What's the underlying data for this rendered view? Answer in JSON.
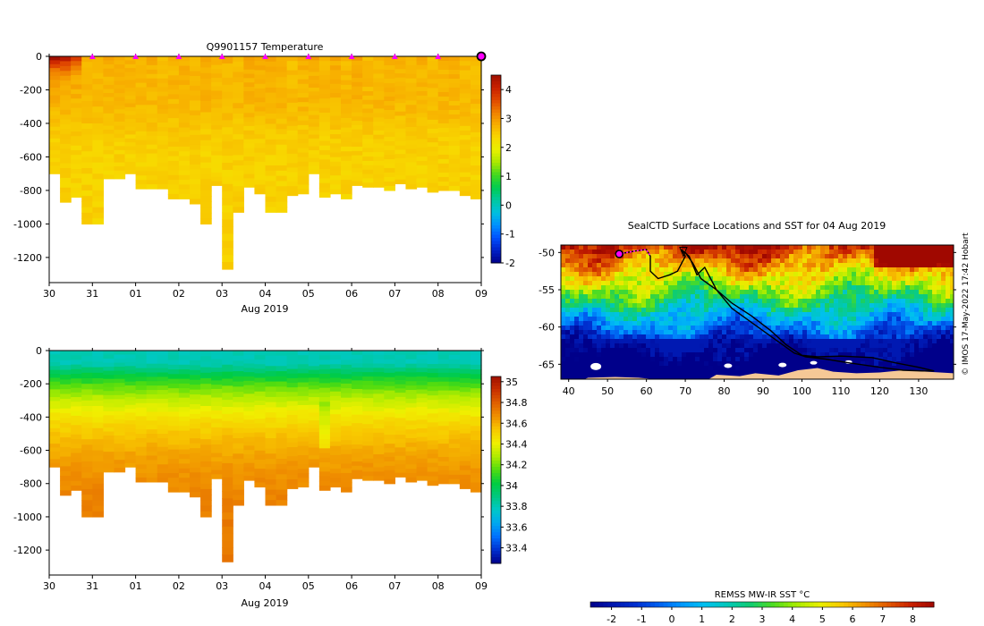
{
  "colors": {
    "temp_ramp": [
      "#00008a",
      "#0020c8",
      "#0050ff",
      "#0090ff",
      "#00c0e0",
      "#00c8a0",
      "#00cc50",
      "#40d820",
      "#a8e800",
      "#e8f000",
      "#f8d800",
      "#f8b000",
      "#f08000",
      "#e04800",
      "#c82000",
      "#a01000"
    ],
    "salt_ramp": [
      "#00008a",
      "#0030d0",
      "#0070ff",
      "#00a8f0",
      "#00c8c8",
      "#00c880",
      "#00cc40",
      "#50dc10",
      "#b0ec00",
      "#f0f000",
      "#f8c800",
      "#f09000",
      "#e06000",
      "#c83000",
      "#a01000"
    ],
    "sst_ramp": [
      "#00008a",
      "#0018b0",
      "#0030d0",
      "#0060f0",
      "#0098ff",
      "#00c0f0",
      "#00c8b8",
      "#10cc70",
      "#50dc20",
      "#a8ec00",
      "#e8f000",
      "#f8c800",
      "#f09000",
      "#e05800",
      "#c82000",
      "#a00800"
    ],
    "land": "#f5c896",
    "marker": "#ff00ff",
    "track": "#000000"
  },
  "chart_data": [
    {
      "id": "temperature",
      "type": "heatmap",
      "title": "Q9901157  Temperature",
      "xlabel": "Aug 2019",
      "x_ticks": [
        "30",
        "31",
        "01",
        "02",
        "03",
        "04",
        "05",
        "06",
        "07",
        "08",
        "09"
      ],
      "y_ticks": [
        "0",
        "-200",
        "-400",
        "-600",
        "-800",
        "-1000",
        "-1200"
      ],
      "ylim": [
        -1350,
        0
      ],
      "x_range_days": [
        0,
        10
      ],
      "colorbar": {
        "ticks": [
          "4",
          "3",
          "2",
          "1",
          "0",
          "-1",
          "-2"
        ],
        "range": [
          -2,
          4.5
        ]
      },
      "profile_times": [
        0.0,
        0.25,
        0.5,
        0.75,
        1.0,
        1.25,
        1.5,
        1.75,
        2.0,
        2.25,
        2.5,
        2.75,
        3.0,
        3.25,
        3.5,
        3.75,
        4.0,
        4.25,
        4.5,
        4.75,
        5.0,
        5.25,
        5.5,
        5.75,
        6.0,
        6.25,
        6.5,
        6.75,
        7.0,
        7.25,
        7.5,
        7.75,
        8.0,
        8.25,
        8.5,
        8.75,
        9.0,
        9.25,
        9.5,
        9.75
      ],
      "profile_max_depths": [
        700,
        870,
        840,
        1000,
        1000,
        730,
        730,
        700,
        790,
        790,
        790,
        850,
        850,
        880,
        1000,
        770,
        1270,
        930,
        780,
        820,
        930,
        930,
        830,
        820,
        700,
        840,
        820,
        850,
        770,
        780,
        780,
        800,
        760,
        790,
        780,
        810,
        800,
        800,
        830,
        850
      ],
      "surface_temperature": 3.5,
      "deep_temperature": 2.4,
      "cast_markers_days": [
        1,
        2,
        3,
        4,
        5,
        6,
        7,
        8,
        9,
        10
      ]
    },
    {
      "id": "salinity",
      "type": "heatmap",
      "xlabel": "Aug 2019",
      "x_ticks": [
        "30",
        "31",
        "01",
        "02",
        "03",
        "04",
        "05",
        "06",
        "07",
        "08",
        "09"
      ],
      "y_ticks": [
        "0",
        "-200",
        "-400",
        "-600",
        "-800",
        "-1000",
        "-1200"
      ],
      "ylim": [
        -1350,
        0
      ],
      "colorbar": {
        "ticks": [
          "35",
          "34.8",
          "34.6",
          "34.4",
          "34.2",
          "34",
          "33.8",
          "33.6",
          "33.4"
        ],
        "range": [
          33.25,
          35.05
        ]
      },
      "surface_salinity": 33.8,
      "deep_salinity": 34.75
    },
    {
      "id": "sst_map",
      "type": "heatmap",
      "title": "SealCTD Surface Locations and SST for 04 Aug 2019",
      "x_ticks": [
        "40",
        "50",
        "60",
        "70",
        "80",
        "90",
        "100",
        "110",
        "120",
        "130"
      ],
      "y_ticks": [
        "-50",
        "-55",
        "-60",
        "-65"
      ],
      "lon_range": [
        38,
        139
      ],
      "lat_range": [
        -67,
        -49
      ],
      "track": [
        [
          53,
          -50.2
        ],
        [
          57,
          -49.8
        ],
        [
          60,
          -49.6
        ],
        [
          61,
          -50.5
        ],
        [
          61,
          -52.5
        ],
        [
          63,
          -53.5
        ],
        [
          66,
          -53.0
        ],
        [
          68,
          -52.5
        ],
        [
          70,
          -50.5
        ],
        [
          69,
          -49.6
        ],
        [
          71,
          -50.5
        ],
        [
          73,
          -53.0
        ],
        [
          75,
          -52.0
        ],
        [
          78,
          -55.0
        ],
        [
          82,
          -57.5
        ],
        [
          86,
          -59.0
        ],
        [
          90,
          -60.5
        ],
        [
          94,
          -62.0
        ],
        [
          98,
          -63.5
        ],
        [
          101,
          -64.0
        ],
        [
          106,
          -64.3
        ],
        [
          112,
          -64.8
        ],
        [
          120,
          -65.4
        ],
        [
          126,
          -65.8
        ],
        [
          131,
          -65.9
        ],
        [
          134,
          -65.9
        ],
        [
          130,
          -65.4
        ],
        [
          124,
          -64.8
        ],
        [
          118,
          -64.1
        ],
        [
          110,
          -63.9
        ],
        [
          104,
          -64.0
        ],
        [
          100,
          -63.8
        ],
        [
          96,
          -62.4
        ],
        [
          92,
          -60.5
        ],
        [
          87,
          -58.5
        ],
        [
          82,
          -56.8
        ],
        [
          78,
          -55.0
        ],
        [
          74,
          -53.5
        ],
        [
          72,
          -51.5
        ],
        [
          70,
          -50.0
        ]
      ],
      "latest_position": [
        53,
        -50.2
      ],
      "colorbar": {
        "label": "REMSS MW-IR SST °C",
        "ticks": [
          "-2",
          "-1",
          "0",
          "1",
          "2",
          "3",
          "4",
          "5",
          "6",
          "7",
          "8"
        ],
        "range": [
          -2.7,
          8.7
        ]
      },
      "credit": "© IMOS 17-May-2022 17:42 Hobart"
    }
  ]
}
